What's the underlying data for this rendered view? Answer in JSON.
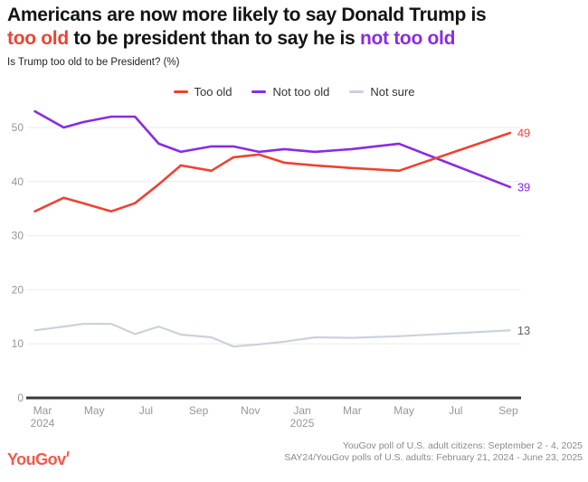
{
  "title": {
    "line1": "Americans are now more likely to say Donald Trump is",
    "line2_red": "too old",
    "line2_mid": " to be president than to say he is ",
    "line2_purple": "not too old"
  },
  "subtitle": "Is Trump too old to be President? (%)",
  "colors": {
    "too_old_red": "#ED4332",
    "not_too_old_purple": "#8A2BE2",
    "not_sure_gray": "#CBD2DB",
    "logo_red": "#F4584A",
    "grid": "#EBEBEB",
    "axis": "#383838",
    "tick_text": "#969696"
  },
  "chart_data": {
    "type": "line",
    "title": "Is Trump too old to be President? (%)",
    "x_dates": [
      "2024-02-21",
      "2024-03-26",
      "2024-04-18",
      "2024-05-21",
      "2024-06-18",
      "2024-07-16",
      "2024-08-11",
      "2024-09-16",
      "2024-10-12",
      "2024-11-11",
      "2024-12-11",
      "2025-01-16",
      "2025-02-28",
      "2025-04-25",
      "2025-09-03"
    ],
    "series": [
      {
        "id": "too-old",
        "name": "Too old",
        "color": "#ED4332",
        "width": 2.6,
        "end_label": "49",
        "end_label_color": "#ED4332",
        "values": [
          34.5,
          37,
          36,
          34.5,
          36,
          39.5,
          43,
          42,
          44.5,
          45,
          43.5,
          43,
          42.5,
          42,
          49
        ]
      },
      {
        "id": "not-too-old",
        "name": "Not too old",
        "color": "#8A2BE2",
        "width": 2.6,
        "end_label": "39",
        "end_label_color": "#8A2BE2",
        "values": [
          53,
          50,
          51,
          52,
          52,
          47,
          45.5,
          46.5,
          46.5,
          45.5,
          46,
          45.5,
          46,
          47,
          39
        ]
      },
      {
        "id": "not-sure",
        "name": "Not sure",
        "color": "#CBD2DB",
        "width": 2.2,
        "end_label": "13",
        "end_label_color": "#5F6368",
        "values": [
          12.5,
          13.2,
          13.7,
          13.7,
          11.8,
          13.2,
          11.7,
          11.2,
          9.5,
          9.9,
          10.4,
          11.2,
          11.1,
          11.4,
          12.5
        ]
      }
    ],
    "ylim": [
      0,
      55
    ],
    "yticks": [
      0,
      10,
      20,
      30,
      40,
      50
    ],
    "xticks": [
      {
        "date": "2024-03-01",
        "label": "Mar",
        "sublabel": "2024"
      },
      {
        "date": "2024-05-01",
        "label": "May"
      },
      {
        "date": "2024-07-01",
        "label": "Jul"
      },
      {
        "date": "2024-09-01",
        "label": "Sep"
      },
      {
        "date": "2024-11-01",
        "label": "Nov"
      },
      {
        "date": "2025-01-01",
        "label": "Jan",
        "sublabel": "2025"
      },
      {
        "date": "2025-03-01",
        "label": "Mar"
      },
      {
        "date": "2025-05-01",
        "label": "May"
      },
      {
        "date": "2025-07-01",
        "label": "Jul"
      },
      {
        "date": "2025-09-01",
        "label": "Sep"
      }
    ],
    "grid": true,
    "legend_position": "top"
  },
  "footer": {
    "logo": "YouGov",
    "source_line1": "YouGov poll of U.S. adult citizens: September 2 - 4, 2025",
    "source_line2": "SAY24/YouGov polls of U.S. adults: February 21, 2024 - June 23, 2025"
  }
}
